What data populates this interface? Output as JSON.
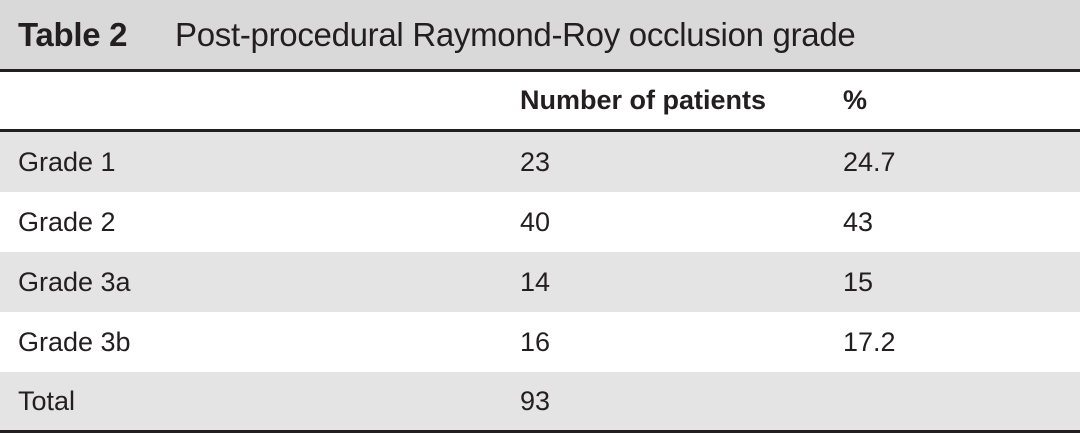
{
  "table": {
    "label": "Table 2",
    "title": "Post-procedural Raymond-Roy occlusion grade",
    "columns": [
      "",
      "Number of patients",
      "%"
    ],
    "rows": [
      {
        "grade": "Grade 1",
        "patients": "23",
        "percent": "24.7"
      },
      {
        "grade": "Grade 2",
        "patients": "40",
        "percent": "43"
      },
      {
        "grade": "Grade 3a",
        "patients": "14",
        "percent": "15"
      },
      {
        "grade": "Grade 3b",
        "patients": "16",
        "percent": "17.2"
      },
      {
        "grade": "Total",
        "patients": "93",
        "percent": ""
      }
    ]
  },
  "colors": {
    "caption_bg": "#d9d9d9",
    "row_shade": "#e4e4e4",
    "rule": "#231f20"
  }
}
